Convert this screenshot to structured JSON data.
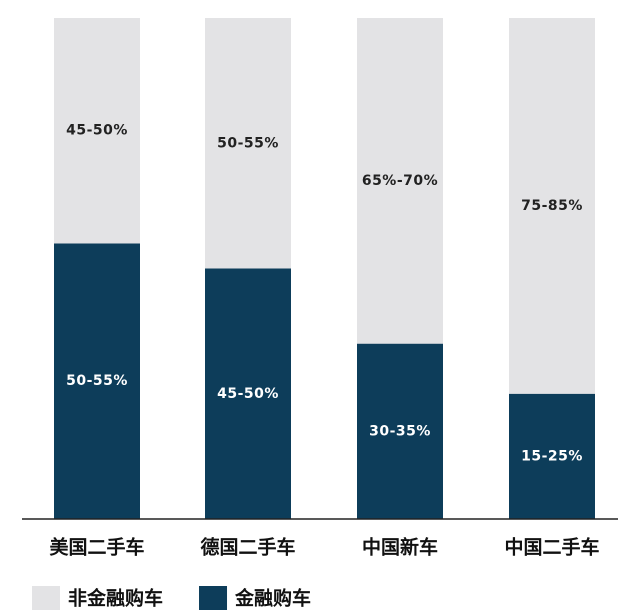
{
  "chart_data": {
    "type": "stacked_bar",
    "categories": [
      "美国二手车",
      "德国二手车",
      "中国新车",
      "中国二手车"
    ],
    "series": [
      {
        "name": "金融购车",
        "color": "#0d3d5a",
        "label_color": "#ffffff",
        "values": [
          55,
          50,
          35,
          25
        ],
        "value_labels": [
          "50-55%",
          "45-50%",
          "30-35%",
          "15-25%"
        ]
      },
      {
        "name": "非金融购车",
        "color": "#e3e3e5",
        "label_color": "#222222",
        "values": [
          45,
          50,
          65,
          75
        ],
        "value_labels": [
          "45-50%",
          "50-55%",
          "65%-70%",
          "75-85%"
        ]
      }
    ],
    "ylim": [
      0,
      100
    ]
  }
}
